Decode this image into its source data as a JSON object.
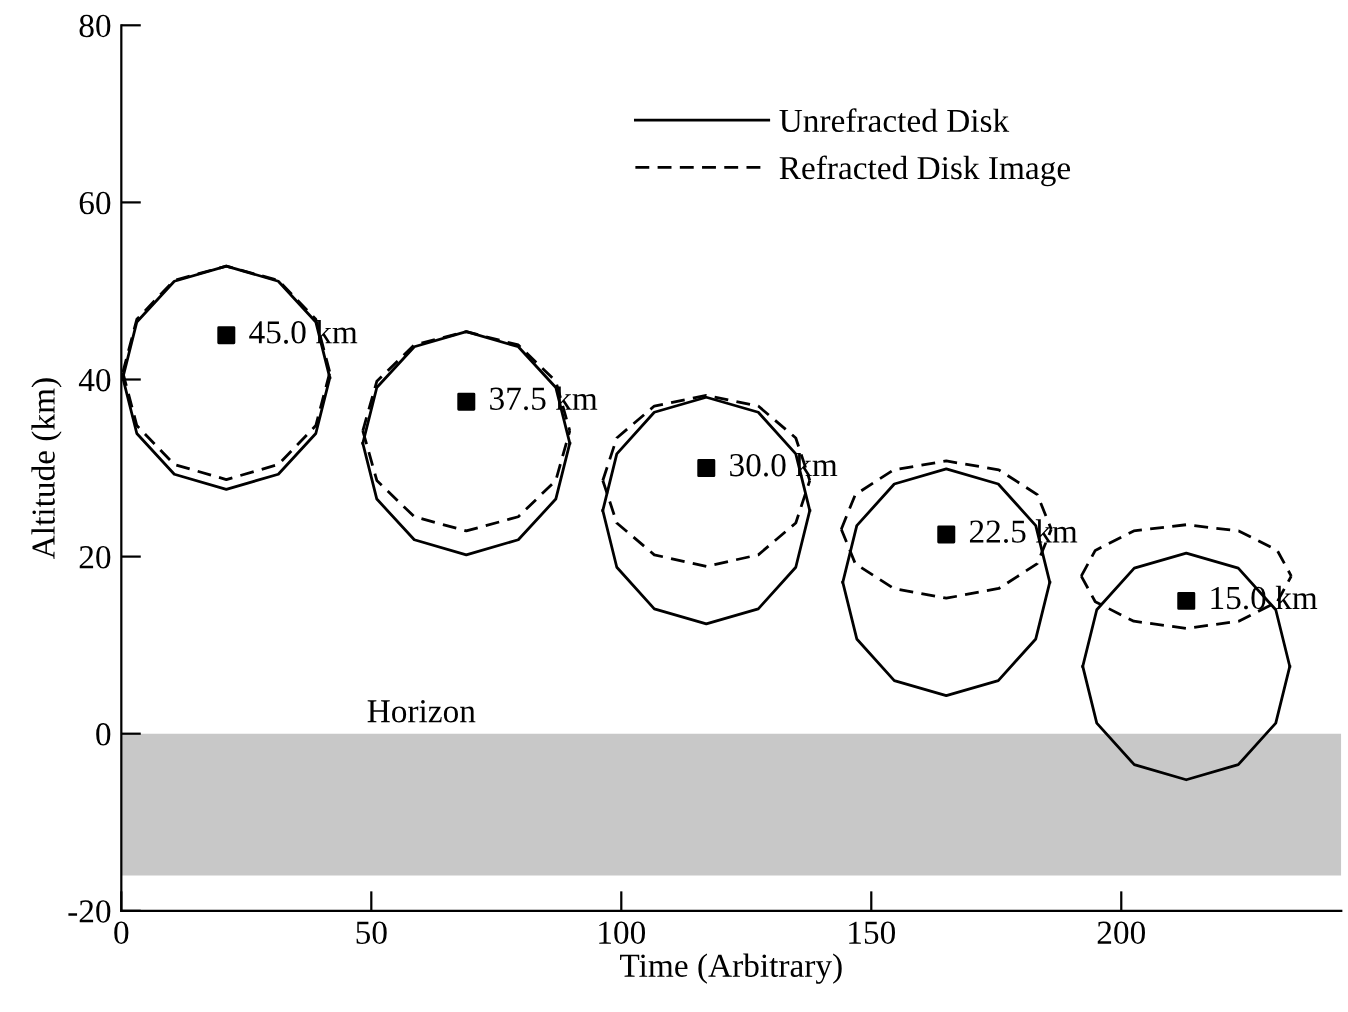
{
  "chart_data": {
    "type": "line",
    "xlabel": "Time (Arbitrary)",
    "ylabel": "Altitude (km)",
    "xlim": [
      0,
      244
    ],
    "ylim": [
      -20,
      80
    ],
    "xticks": [
      0,
      50,
      100,
      150,
      200
    ],
    "yticks": [
      -20,
      0,
      20,
      40,
      60,
      80
    ],
    "grid": false,
    "legend": "top",
    "series": [
      {
        "name": "Unrefracted Disk",
        "color": "#000000",
        "line_style": "solid",
        "marker": "none",
        "x": [
          0.3,
          3.1,
          10.6,
          21,
          31.4,
          38.9,
          41.7
        ],
        "values": [
          40.2,
          46.5,
          51.1,
          52.8,
          51.1,
          46.5,
          40.2
        ]
      },
      {
        "color": "#000000",
        "line_style": "solid",
        "marker": "none",
        "x": [
          0.3,
          3.1,
          10.6,
          21,
          31.4,
          38.9,
          41.7
        ],
        "values": [
          40.2,
          33.9,
          29.3,
          27.6,
          29.3,
          33.9,
          40.2
        ]
      },
      {
        "color": "#000000",
        "line_style": "solid",
        "marker": "none",
        "x": [
          48.3,
          51.1,
          58.6,
          69,
          79.4,
          86.9,
          89.7
        ],
        "values": [
          32.8,
          39.1,
          43.7,
          45.4,
          43.7,
          39.1,
          32.8
        ]
      },
      {
        "color": "#000000",
        "line_style": "solid",
        "marker": "none",
        "x": [
          48.3,
          51.1,
          58.6,
          69,
          79.4,
          86.9,
          89.7
        ],
        "values": [
          32.8,
          26.5,
          21.9,
          20.2,
          21.9,
          26.5,
          32.8
        ]
      },
      {
        "color": "#000000",
        "line_style": "solid",
        "marker": "none",
        "x": [
          96.3,
          99.1,
          106.6,
          117,
          127.4,
          134.9,
          137.7
        ],
        "values": [
          25.2,
          31.6,
          36.3,
          38,
          36.3,
          31.6,
          25.2
        ]
      },
      {
        "color": "#000000",
        "line_style": "solid",
        "marker": "none",
        "x": [
          96.3,
          99.1,
          106.6,
          117,
          127.4,
          134.9,
          137.7
        ],
        "values": [
          25.2,
          18.8,
          14.1,
          12.4,
          14.1,
          18.8,
          25.2
        ]
      },
      {
        "color": "#000000",
        "line_style": "solid",
        "marker": "none",
        "x": [
          144.3,
          147.1,
          154.6,
          165,
          175.4,
          182.9,
          185.7
        ],
        "values": [
          17.1,
          23.5,
          28.2,
          29.9,
          28.2,
          23.5,
          17.1
        ]
      },
      {
        "color": "#000000",
        "line_style": "solid",
        "marker": "none",
        "x": [
          144.3,
          147.1,
          154.6,
          165,
          175.4,
          182.9,
          185.7
        ],
        "values": [
          17.1,
          10.7,
          6,
          4.3,
          6,
          10.7,
          17.1
        ]
      },
      {
        "color": "#000000",
        "line_style": "solid",
        "marker": "none",
        "x": [
          192.3,
          195.1,
          202.6,
          213,
          223.4,
          230.9,
          233.7
        ],
        "values": [
          7.6,
          14,
          18.7,
          20.4,
          18.7,
          14,
          7.6
        ]
      },
      {
        "color": "#000000",
        "line_style": "solid",
        "marker": "none",
        "x": [
          192.3,
          195.1,
          202.6,
          213,
          223.4,
          230.9,
          233.7
        ],
        "values": [
          7.6,
          1.2,
          -3.5,
          -5.2,
          -3.5,
          1.2,
          7.6
        ]
      },
      {
        "name": "Refracted Disk Image",
        "color": "#000000",
        "line_style": "dashed",
        "marker": "none",
        "x": [
          0.3,
          3.1,
          10.6,
          21,
          31.4,
          38.9,
          41.7
        ],
        "values": [
          40.8,
          46.8,
          51.2,
          52.8,
          51.2,
          46.8,
          40.8
        ]
      },
      {
        "color": "#000000",
        "line_style": "dashed",
        "marker": "none",
        "x": [
          0.3,
          3.1,
          10.6,
          21,
          31.4,
          38.9,
          41.7
        ],
        "values": [
          40.8,
          34.8,
          30.4,
          28.7,
          30.4,
          34.8,
          40.8
        ]
      },
      {
        "color": "#000000",
        "line_style": "dashed",
        "marker": "none",
        "x": [
          48.3,
          51.1,
          58.6,
          69,
          79.4,
          86.9,
          89.7
        ],
        "values": [
          34.2,
          39.8,
          43.9,
          45.4,
          43.9,
          39.8,
          34.2
        ]
      },
      {
        "color": "#000000",
        "line_style": "dashed",
        "marker": "none",
        "x": [
          48.3,
          51.1,
          58.6,
          69,
          79.4,
          86.9,
          89.7
        ],
        "values": [
          34.2,
          28.6,
          24.5,
          22.9,
          24.5,
          28.6,
          34.2
        ]
      },
      {
        "color": "#000000",
        "line_style": "dashed",
        "marker": "none",
        "x": [
          96.3,
          99.1,
          106.6,
          117,
          127.4,
          134.9,
          137.7
        ],
        "values": [
          28.6,
          33.4,
          37,
          38.2,
          37,
          33.4,
          28.6
        ]
      },
      {
        "color": "#000000",
        "line_style": "dashed",
        "marker": "none",
        "x": [
          96.3,
          99.1,
          106.6,
          117,
          127.4,
          134.9,
          137.7
        ],
        "values": [
          28.6,
          23.8,
          20.2,
          18.9,
          20.2,
          23.8,
          28.6
        ]
      },
      {
        "color": "#000000",
        "line_style": "dashed",
        "marker": "none",
        "x": [
          144,
          146.8,
          154.5,
          165,
          175.5,
          183.2,
          186
        ],
        "values": [
          23.1,
          27,
          29.8,
          30.8,
          29.8,
          27,
          23.1
        ]
      },
      {
        "color": "#000000",
        "line_style": "dashed",
        "marker": "none",
        "x": [
          144,
          146.8,
          154.5,
          165,
          175.5,
          183.2,
          186
        ],
        "values": [
          23.1,
          19.2,
          16.4,
          15.3,
          16.4,
          19.2,
          23.1
        ]
      },
      {
        "color": "#000000",
        "line_style": "dashed",
        "marker": "none",
        "x": [
          192,
          194.8,
          202.5,
          213,
          223.5,
          231.2,
          234
        ],
        "values": [
          17.8,
          20.7,
          22.9,
          23.6,
          22.9,
          20.7,
          17.8
        ]
      },
      {
        "color": "#000000",
        "line_style": "dashed",
        "marker": "none",
        "x": [
          192,
          194.8,
          202.5,
          213,
          223.5,
          231.2,
          234
        ],
        "values": [
          17.8,
          14.9,
          12.7,
          11.9,
          12.7,
          14.9,
          17.8
        ]
      },
      {
        "type": "scatter",
        "color": "#000000",
        "marker": "square",
        "x": [
          21,
          69,
          117,
          165,
          213
        ],
        "values": [
          45,
          37.5,
          30,
          22.5,
          15
        ]
      }
    ],
    "annotations": [
      {
        "text": "45.0 km",
        "x": 21,
        "y": 45
      },
      {
        "text": "37.5 km",
        "x": 69,
        "y": 37.5
      },
      {
        "text": "30.0 km",
        "x": 117,
        "y": 30
      },
      {
        "text": "22.5 km",
        "x": 165,
        "y": 22.5
      },
      {
        "text": "15.0 km",
        "x": 213,
        "y": 15
      }
    ],
    "bands": [
      {
        "axis": "y",
        "from": 0,
        "to": -16,
        "label": "Horizon",
        "color": "#c8c8c8"
      }
    ]
  }
}
